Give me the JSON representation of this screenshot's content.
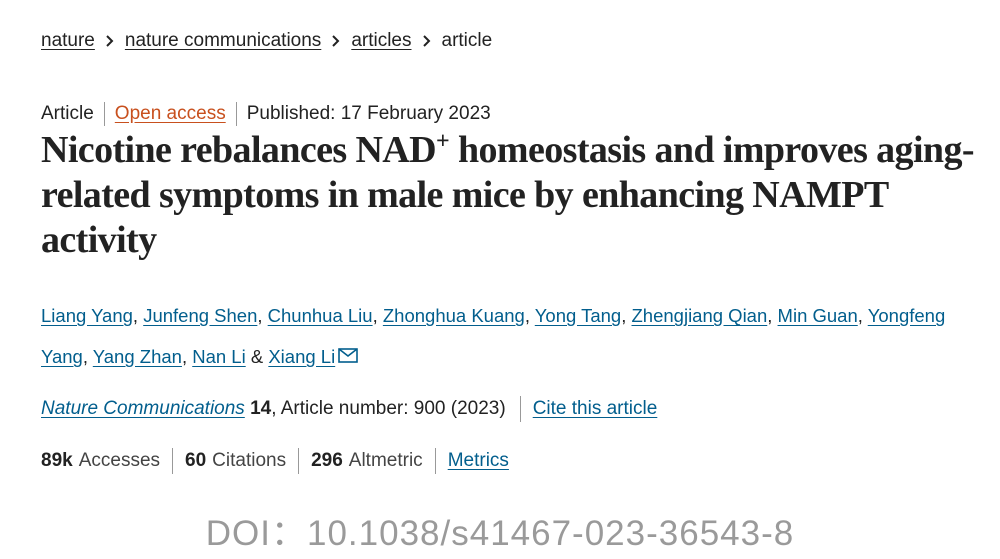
{
  "breadcrumb": [
    "nature",
    "nature communications",
    "articles",
    "article"
  ],
  "meta": {
    "type": "Article",
    "access": "Open access",
    "published": "Published: 17 February 2023"
  },
  "title": {
    "before": "Nicotine rebalances NAD",
    "superscript": "+",
    "after": " homeostasis and improves aging-related symptoms in male mice by enhancing NAMPT activity"
  },
  "authors": {
    "names": [
      "Liang Yang",
      "Junfeng Shen",
      "Chunhua Liu",
      "Zhonghua Kuang",
      "Yong Tang",
      "Zhengjiang Qian",
      "Min Guan",
      "Yongfeng Yang",
      "Yang Zhan",
      "Nan Li",
      "Xiang Li"
    ],
    "separator": ",",
    "conjunction": "&"
  },
  "citation": {
    "journal": "Nature Communications",
    "volume": "14",
    "details": ", Article number: 900 (2023)",
    "cite_link": "Cite this article"
  },
  "metrics": [
    {
      "value": "89k",
      "label": "Accesses"
    },
    {
      "value": "60",
      "label": "Citations"
    },
    {
      "value": "296",
      "label": "Altmetric"
    }
  ],
  "metrics_link": "Metrics",
  "doi": "DOI：10.1038/s41467-023-36543-8"
}
